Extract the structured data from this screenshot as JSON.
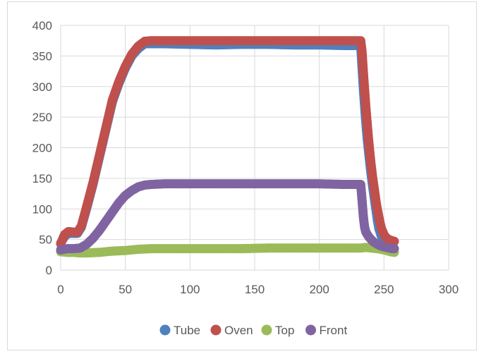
{
  "chart_data": {
    "type": "scatter",
    "title": "",
    "xlabel": "",
    "ylabel": "",
    "xlim": [
      0,
      300
    ],
    "ylim": [
      0,
      400
    ],
    "x_ticks": [
      0,
      50,
      100,
      150,
      200,
      250,
      300
    ],
    "y_ticks": [
      0,
      50,
      100,
      150,
      200,
      250,
      300,
      350,
      400
    ],
    "grid": true,
    "legend_position": "bottom",
    "series": [
      {
        "name": "Tube",
        "color": "#4F81BD",
        "points": [
          [
            0,
            44
          ],
          [
            3,
            55
          ],
          [
            6,
            60
          ],
          [
            10,
            60
          ],
          [
            13,
            60
          ],
          [
            16,
            70
          ],
          [
            20,
            100
          ],
          [
            25,
            140
          ],
          [
            30,
            185
          ],
          [
            35,
            230
          ],
          [
            40,
            275
          ],
          [
            45,
            305
          ],
          [
            50,
            330
          ],
          [
            55,
            350
          ],
          [
            60,
            362
          ],
          [
            65,
            370
          ],
          [
            70,
            370
          ],
          [
            80,
            370
          ],
          [
            100,
            369
          ],
          [
            120,
            368
          ],
          [
            140,
            369
          ],
          [
            160,
            369
          ],
          [
            180,
            368
          ],
          [
            200,
            368
          ],
          [
            220,
            367
          ],
          [
            232,
            367
          ],
          [
            233,
            332
          ],
          [
            234,
            298
          ],
          [
            235,
            268
          ],
          [
            236,
            240
          ],
          [
            237,
            215
          ],
          [
            238,
            195
          ],
          [
            239,
            175
          ],
          [
            240,
            157
          ],
          [
            241,
            140
          ],
          [
            242,
            125
          ],
          [
            243,
            110
          ],
          [
            244,
            95
          ],
          [
            245,
            80
          ],
          [
            246,
            68
          ],
          [
            248,
            55
          ],
          [
            250,
            47
          ],
          [
            253,
            42
          ],
          [
            257,
            40
          ]
        ]
      },
      {
        "name": "Oven",
        "color": "#C0504D",
        "points": [
          [
            0,
            43
          ],
          [
            3,
            58
          ],
          [
            6,
            63
          ],
          [
            10,
            62
          ],
          [
            13,
            62
          ],
          [
            16,
            72
          ],
          [
            20,
            103
          ],
          [
            25,
            143
          ],
          [
            30,
            188
          ],
          [
            35,
            233
          ],
          [
            40,
            278
          ],
          [
            45,
            308
          ],
          [
            50,
            333
          ],
          [
            55,
            353
          ],
          [
            60,
            366
          ],
          [
            65,
            374
          ],
          [
            70,
            375
          ],
          [
            80,
            375
          ],
          [
            100,
            375
          ],
          [
            120,
            375
          ],
          [
            140,
            375
          ],
          [
            160,
            375
          ],
          [
            180,
            375
          ],
          [
            200,
            375
          ],
          [
            220,
            375
          ],
          [
            232,
            375
          ],
          [
            233,
            358
          ],
          [
            234,
            325
          ],
          [
            235,
            295
          ],
          [
            236,
            265
          ],
          [
            237,
            240
          ],
          [
            238,
            215
          ],
          [
            239,
            193
          ],
          [
            240,
            173
          ],
          [
            241,
            155
          ],
          [
            242,
            140
          ],
          [
            243,
            125
          ],
          [
            244,
            110
          ],
          [
            245,
            98
          ],
          [
            246,
            87
          ],
          [
            247,
            77
          ],
          [
            248,
            68
          ],
          [
            250,
            58
          ],
          [
            252,
            52
          ],
          [
            255,
            49
          ],
          [
            258,
            47
          ]
        ]
      },
      {
        "name": "Top",
        "color": "#9BBB59",
        "points": [
          [
            0,
            30
          ],
          [
            5,
            29
          ],
          [
            10,
            29
          ],
          [
            15,
            28
          ],
          [
            20,
            28
          ],
          [
            30,
            29
          ],
          [
            40,
            31
          ],
          [
            50,
            32
          ],
          [
            60,
            34
          ],
          [
            70,
            35
          ],
          [
            80,
            35
          ],
          [
            100,
            35
          ],
          [
            120,
            35
          ],
          [
            140,
            35
          ],
          [
            160,
            36
          ],
          [
            180,
            36
          ],
          [
            200,
            36
          ],
          [
            220,
            36
          ],
          [
            232,
            36
          ],
          [
            236,
            37
          ],
          [
            240,
            36
          ],
          [
            245,
            35
          ],
          [
            250,
            33
          ],
          [
            255,
            30
          ],
          [
            258,
            29
          ]
        ]
      },
      {
        "name": "Front",
        "color": "#8064A2",
        "points": [
          [
            0,
            33
          ],
          [
            5,
            35
          ],
          [
            10,
            35
          ],
          [
            15,
            36
          ],
          [
            20,
            42
          ],
          [
            25,
            52
          ],
          [
            30,
            65
          ],
          [
            35,
            80
          ],
          [
            40,
            95
          ],
          [
            45,
            110
          ],
          [
            50,
            122
          ],
          [
            55,
            130
          ],
          [
            60,
            136
          ],
          [
            65,
            139
          ],
          [
            70,
            140
          ],
          [
            80,
            141
          ],
          [
            100,
            141
          ],
          [
            120,
            141
          ],
          [
            140,
            141
          ],
          [
            160,
            141
          ],
          [
            180,
            141
          ],
          [
            200,
            141
          ],
          [
            220,
            140
          ],
          [
            232,
            140
          ],
          [
            233,
            115
          ],
          [
            234,
            88
          ],
          [
            235,
            70
          ],
          [
            236,
            62
          ],
          [
            238,
            55
          ],
          [
            240,
            50
          ],
          [
            242,
            46
          ],
          [
            245,
            42
          ],
          [
            248,
            39
          ],
          [
            252,
            37
          ],
          [
            256,
            35
          ],
          [
            258,
            35
          ]
        ]
      }
    ]
  }
}
